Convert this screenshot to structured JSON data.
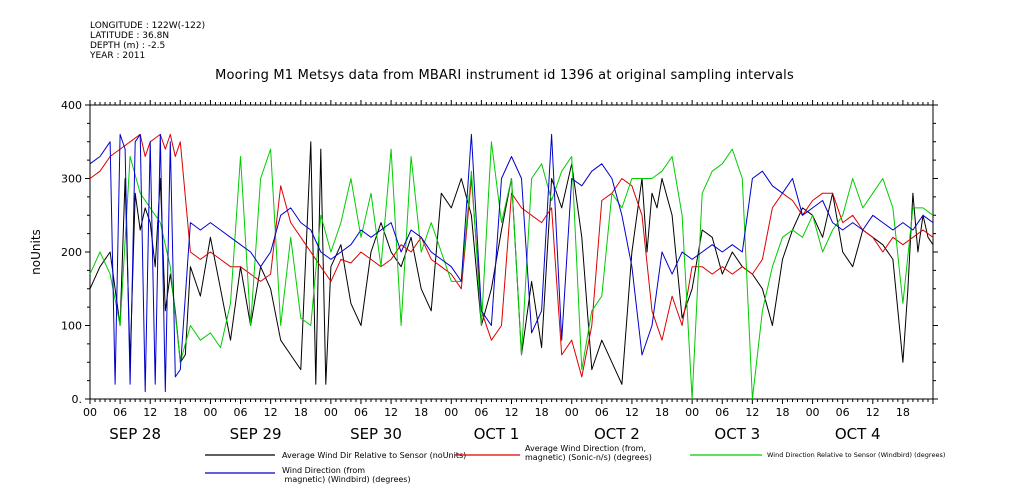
{
  "header": {
    "meta_lines": [
      "LONGITUDE : 122W(-122)",
      "LATITUDE : 36.8N",
      "DEPTH (m) : -2.5",
      "YEAR : 2011"
    ]
  },
  "chart_data": {
    "type": "line",
    "title": "Mooring M1 Metsys data from MBARI instrument id 1396 at original sampling intervals",
    "xlabel": "",
    "ylabel": "noUnits",
    "x_unit": "hours since 2011-09-28 00:00",
    "xlim": [
      0,
      168
    ],
    "ylim": [
      0,
      400
    ],
    "y_ticks": [
      0,
      100,
      200,
      300,
      400
    ],
    "y_tick_labels": [
      "0.",
      "100",
      "200",
      "300",
      "400"
    ],
    "x_hour_ticks": [
      "00",
      "06",
      "12",
      "18",
      "00",
      "06",
      "12",
      "18",
      "00",
      "06",
      "12",
      "18",
      "00",
      "06",
      "12",
      "18",
      "00",
      "06",
      "12",
      "18",
      "00",
      "06",
      "12",
      "18",
      "00",
      "06",
      "12",
      "18"
    ],
    "x_day_labels": [
      "SEP 28",
      "SEP 29",
      "SEP 30",
      "OCT  1",
      "OCT  2",
      "OCT  3",
      "OCT  4"
    ],
    "grid": false,
    "legend_position": "bottom",
    "series": [
      {
        "name": "Average Wind Dir Relative to Sensor (noUnits)",
        "color": "#000000",
        "x": [
          0,
          2,
          4,
          5,
          6,
          7,
          8,
          9,
          10,
          11,
          12,
          13,
          14,
          15,
          16,
          17,
          18,
          19,
          20,
          22,
          24,
          26,
          28,
          30,
          32,
          34,
          36,
          38,
          40,
          42,
          44,
          45,
          46,
          47,
          48,
          50,
          52,
          54,
          56,
          58,
          60,
          62,
          64,
          66,
          68,
          70,
          72,
          74,
          76,
          78,
          80,
          82,
          84,
          86,
          88,
          90,
          92,
          94,
          96,
          98,
          100,
          102,
          104,
          106,
          108,
          109,
          110,
          111,
          112,
          113,
          114,
          116,
          118,
          120,
          122,
          124,
          126,
          128,
          130,
          132,
          134,
          136,
          138,
          140,
          142,
          144,
          146,
          148,
          150,
          152,
          154,
          156,
          158,
          160,
          162,
          163,
          164,
          165,
          166,
          167,
          168
        ],
        "y": [
          150,
          180,
          200,
          150,
          100,
          300,
          50,
          280,
          230,
          260,
          240,
          180,
          300,
          120,
          170,
          120,
          50,
          60,
          180,
          140,
          220,
          150,
          80,
          180,
          100,
          180,
          150,
          80,
          60,
          40,
          350,
          20,
          340,
          20,
          180,
          210,
          130,
          100,
          200,
          240,
          200,
          180,
          220,
          150,
          120,
          280,
          260,
          300,
          250,
          100,
          150,
          230,
          300,
          60,
          160,
          70,
          300,
          260,
          320,
          220,
          40,
          80,
          50,
          20,
          200,
          250,
          300,
          200,
          280,
          260,
          300,
          250,
          110,
          150,
          230,
          220,
          170,
          200,
          180,
          170,
          150,
          100,
          190,
          230,
          260,
          250,
          220,
          280,
          200,
          180,
          230,
          220,
          210,
          190,
          50,
          150,
          280,
          200,
          250,
          220,
          210
        ]
      },
      {
        "name": "Average Wind Direction (from, magnetic) (Sonic-n/s) (degrees)",
        "color": "#dd0000",
        "x": [
          0,
          2,
          4,
          6,
          8,
          10,
          11,
          12,
          13,
          14,
          15,
          16,
          17,
          18,
          20,
          22,
          24,
          26,
          28,
          30,
          32,
          34,
          36,
          38,
          40,
          42,
          44,
          46,
          48,
          50,
          52,
          54,
          56,
          58,
          60,
          62,
          64,
          66,
          68,
          70,
          72,
          74,
          76,
          78,
          80,
          82,
          84,
          86,
          88,
          90,
          92,
          94,
          96,
          98,
          100,
          102,
          104,
          106,
          108,
          110,
          112,
          114,
          116,
          118,
          120,
          122,
          124,
          126,
          128,
          130,
          132,
          134,
          136,
          138,
          140,
          142,
          144,
          146,
          148,
          150,
          152,
          154,
          156,
          158,
          160,
          162,
          164,
          166,
          168
        ],
        "y": [
          300,
          310,
          330,
          340,
          350,
          360,
          330,
          350,
          355,
          360,
          340,
          360,
          330,
          350,
          200,
          190,
          200,
          190,
          180,
          180,
          170,
          160,
          170,
          290,
          240,
          220,
          200,
          180,
          160,
          190,
          185,
          200,
          190,
          180,
          190,
          210,
          200,
          220,
          190,
          180,
          170,
          150,
          300,
          120,
          80,
          100,
          280,
          260,
          250,
          240,
          260,
          60,
          80,
          30,
          100,
          270,
          280,
          300,
          290,
          250,
          120,
          80,
          140,
          100,
          180,
          180,
          170,
          180,
          170,
          180,
          170,
          190,
          260,
          280,
          270,
          250,
          270,
          280,
          280,
          240,
          250,
          230,
          220,
          200,
          220,
          210,
          220,
          230,
          220
        ]
      },
      {
        "name": "Wind Direction Relative to Sensor (Windbird) (degrees)",
        "color": "#00cc00",
        "x": [
          0,
          2,
          4,
          6,
          8,
          10,
          12,
          14,
          16,
          18,
          20,
          22,
          24,
          26,
          28,
          30,
          32,
          34,
          36,
          38,
          40,
          42,
          44,
          46,
          48,
          50,
          52,
          54,
          56,
          58,
          60,
          62,
          64,
          66,
          68,
          70,
          72,
          74,
          76,
          78,
          80,
          82,
          84,
          86,
          88,
          90,
          92,
          94,
          96,
          98,
          100,
          102,
          104,
          106,
          108,
          110,
          112,
          114,
          116,
          118,
          120,
          122,
          124,
          126,
          128,
          130,
          132,
          134,
          136,
          138,
          140,
          142,
          144,
          146,
          148,
          150,
          152,
          154,
          156,
          158,
          160,
          162,
          164,
          166,
          168
        ],
        "y": [
          170,
          200,
          170,
          100,
          330,
          280,
          260,
          240,
          180,
          50,
          100,
          80,
          90,
          70,
          130,
          330,
          100,
          300,
          340,
          100,
          220,
          110,
          100,
          250,
          200,
          240,
          300,
          220,
          280,
          180,
          340,
          100,
          330,
          200,
          240,
          200,
          160,
          160,
          310,
          100,
          350,
          240,
          300,
          60,
          300,
          320,
          270,
          310,
          330,
          40,
          120,
          140,
          280,
          260,
          300,
          300,
          300,
          310,
          330,
          250,
          0,
          280,
          310,
          320,
          340,
          300,
          0,
          120,
          180,
          220,
          230,
          220,
          250,
          200,
          230,
          250,
          300,
          260,
          280,
          300,
          260,
          130,
          260,
          260,
          250
        ]
      },
      {
        "name": "Wind Direction (from, magnetic) (Windbird) (degrees)",
        "color": "#0000cc",
        "x": [
          0,
          2,
          4,
          5,
          6,
          7,
          8,
          9,
          10,
          11,
          12,
          13,
          14,
          15,
          16,
          17,
          18,
          20,
          22,
          24,
          26,
          28,
          30,
          32,
          34,
          36,
          38,
          40,
          42,
          44,
          46,
          48,
          50,
          52,
          54,
          56,
          58,
          60,
          62,
          64,
          66,
          68,
          70,
          72,
          74,
          76,
          78,
          80,
          82,
          84,
          86,
          88,
          90,
          92,
          94,
          96,
          98,
          100,
          102,
          104,
          106,
          108,
          110,
          112,
          114,
          116,
          118,
          120,
          122,
          124,
          126,
          128,
          130,
          132,
          134,
          136,
          138,
          140,
          142,
          144,
          146,
          148,
          150,
          152,
          154,
          156,
          158,
          160,
          162,
          164,
          166,
          168
        ],
        "y": [
          320,
          330,
          350,
          20,
          360,
          340,
          20,
          350,
          360,
          10,
          350,
          20,
          360,
          10,
          350,
          30,
          40,
          240,
          230,
          240,
          230,
          220,
          210,
          200,
          180,
          200,
          250,
          260,
          240,
          230,
          200,
          190,
          200,
          210,
          230,
          220,
          230,
          240,
          200,
          230,
          220,
          200,
          190,
          180,
          160,
          360,
          120,
          100,
          300,
          330,
          300,
          90,
          120,
          360,
          80,
          300,
          290,
          310,
          320,
          300,
          250,
          180,
          60,
          100,
          200,
          170,
          200,
          190,
          200,
          210,
          200,
          210,
          200,
          300,
          310,
          290,
          280,
          300,
          250,
          260,
          270,
          240,
          230,
          240,
          230,
          250,
          240,
          230,
          240,
          230,
          250,
          240
        ]
      }
    ]
  }
}
